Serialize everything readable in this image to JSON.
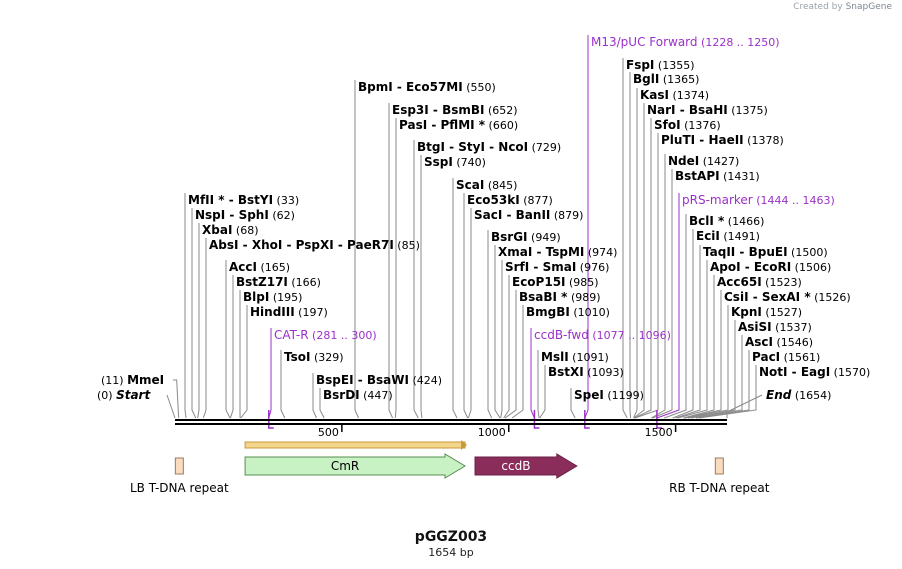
{
  "watermark": {
    "prefix": "Created by",
    "brand": "SnapGene"
  },
  "sequence": {
    "name": "pGGZ003",
    "length_label": "1654 bp",
    "length": 1654
  },
  "axis": {
    "ticks": [
      {
        "label": "500",
        "pos": 500
      },
      {
        "label": "1000",
        "pos": 1000
      },
      {
        "label": "1500",
        "pos": 1500
      }
    ]
  },
  "labels": [
    {
      "name": "FspI",
      "pos": "(1355)",
      "site": 1355,
      "kind": "enzyme"
    },
    {
      "name": "BglI",
      "pos": "(1365)",
      "site": 1365,
      "kind": "enzyme"
    },
    {
      "name": "KasI",
      "pos": "(1374)",
      "site": 1374,
      "kind": "enzyme"
    },
    {
      "name": "NarI  - BsaHI",
      "pos": "(1375)",
      "site": 1375,
      "kind": "enzyme"
    },
    {
      "name": "SfoI",
      "pos": "(1376)",
      "site": 1376,
      "kind": "enzyme"
    },
    {
      "name": "PluTI  - HaeII",
      "pos": "(1378)",
      "site": 1378,
      "kind": "enzyme"
    },
    {
      "name": "NdeI",
      "pos": "(1427)",
      "site": 1427,
      "kind": "enzyme"
    },
    {
      "name": "BstAPI",
      "pos": "(1431)",
      "site": 1431,
      "kind": "enzyme"
    },
    {
      "name": "pRS-marker",
      "pos": "(1444 .. 1463)",
      "site": 1444,
      "kind": "primer"
    },
    {
      "name": "BclI *",
      "pos": "(1466)",
      "site": 1466,
      "kind": "enzyme"
    },
    {
      "name": "EciI",
      "pos": "(1491)",
      "site": 1491,
      "kind": "enzyme"
    },
    {
      "name": "TaqII  - BpuEI",
      "pos": "(1500)",
      "site": 1500,
      "kind": "enzyme"
    },
    {
      "name": "ApoI  - EcoRI",
      "pos": "(1506)",
      "site": 1506,
      "kind": "enzyme"
    },
    {
      "name": "Acc65I",
      "pos": "(1523)",
      "site": 1523,
      "kind": "enzyme"
    },
    {
      "name": "CsiI  - SexAI *",
      "pos": "(1526)",
      "site": 1526,
      "kind": "enzyme"
    },
    {
      "name": "KpnI",
      "pos": "(1527)",
      "site": 1527,
      "kind": "enzyme"
    },
    {
      "name": "AsiSI",
      "pos": "(1537)",
      "site": 1537,
      "kind": "enzyme"
    },
    {
      "name": "AscI",
      "pos": "(1546)",
      "site": 1546,
      "kind": "enzyme"
    },
    {
      "name": "PacI",
      "pos": "(1561)",
      "site": 1561,
      "kind": "enzyme"
    },
    {
      "name": "NotI  - EagI",
      "pos": "(1570)",
      "site": 1570,
      "kind": "enzyme"
    },
    {
      "name": "End",
      "pos": "(1654)",
      "site": 1654,
      "kind": "end"
    },
    {
      "name": "M13/pUC Forward",
      "pos": "(1228 .. 1250)",
      "site": 1228,
      "kind": "primer"
    },
    {
      "name": "BpmI  - Eco57MI",
      "pos": "(550)",
      "site": 550,
      "kind": "enzyme"
    },
    {
      "name": "Esp3I  - BsmBI",
      "pos": "(652)",
      "site": 652,
      "kind": "enzyme"
    },
    {
      "name": "PasI  - PflMI *",
      "pos": "(660)",
      "site": 660,
      "kind": "enzyme"
    },
    {
      "name": "BtgI  - StyI  - NcoI",
      "pos": "(729)",
      "site": 729,
      "kind": "enzyme"
    },
    {
      "name": "SspI",
      "pos": "(740)",
      "site": 740,
      "kind": "enzyme"
    },
    {
      "name": "ScaI",
      "pos": "(845)",
      "site": 845,
      "kind": "enzyme"
    },
    {
      "name": "Eco53kI",
      "pos": "(877)",
      "site": 877,
      "kind": "enzyme"
    },
    {
      "name": "SacI  - BanII",
      "pos": "(879)",
      "site": 879,
      "kind": "enzyme"
    },
    {
      "name": "BsrGI",
      "pos": "(949)",
      "site": 949,
      "kind": "enzyme"
    },
    {
      "name": "XmaI  - TspMI",
      "pos": "(974)",
      "site": 974,
      "kind": "enzyme"
    },
    {
      "name": "SrfI  - SmaI",
      "pos": "(976)",
      "site": 976,
      "kind": "enzyme"
    },
    {
      "name": "EcoP15I",
      "pos": "(985)",
      "site": 985,
      "kind": "enzyme"
    },
    {
      "name": "BsaBI *",
      "pos": "(989)",
      "site": 989,
      "kind": "enzyme"
    },
    {
      "name": "BmgBI",
      "pos": "(1010)",
      "site": 1010,
      "kind": "enzyme"
    },
    {
      "name": "ccdB-fwd",
      "pos": "(1077 .. 1096)",
      "site": 1077,
      "kind": "primer"
    },
    {
      "name": "MslI",
      "pos": "(1091)",
      "site": 1091,
      "kind": "enzyme"
    },
    {
      "name": "BstXI",
      "pos": "(1093)",
      "site": 1093,
      "kind": "enzyme"
    },
    {
      "name": "SpeI",
      "pos": "(1199)",
      "site": 1199,
      "kind": "enzyme"
    },
    {
      "name": "MfII *  - BstYI",
      "pos": "(33)",
      "site": 33,
      "kind": "enzyme"
    },
    {
      "name": "NspI  - SphI",
      "pos": "(62)",
      "site": 62,
      "kind": "enzyme"
    },
    {
      "name": "XbaI",
      "pos": "(68)",
      "site": 68,
      "kind": "enzyme"
    },
    {
      "name": "AbsI  - XhoI  - PspXI  - PaeR7I",
      "pos": "(85)",
      "site": 85,
      "kind": "enzyme"
    },
    {
      "name": "AccI",
      "pos": "(165)",
      "site": 165,
      "kind": "enzyme"
    },
    {
      "name": "BstZ17I",
      "pos": "(166)",
      "site": 166,
      "kind": "enzyme"
    },
    {
      "name": "BlpI",
      "pos": "(195)",
      "site": 195,
      "kind": "enzyme"
    },
    {
      "name": "HindIII",
      "pos": "(197)",
      "site": 197,
      "kind": "enzyme"
    },
    {
      "name": "CAT-R",
      "pos": "(281 .. 300)",
      "site": 281,
      "kind": "primer"
    },
    {
      "name": "TsoI",
      "pos": "(329)",
      "site": 329,
      "kind": "enzyme"
    },
    {
      "name": "BspEI  - BsaWI",
      "pos": "(424)",
      "site": 424,
      "kind": "enzyme"
    },
    {
      "name": "BsrDI",
      "pos": "(447)",
      "site": 447,
      "kind": "enzyme"
    },
    {
      "name": "MmeI",
      "pos": "(11)",
      "site": 11,
      "kind": "enzyme"
    },
    {
      "name": "Start",
      "pos": "(0)",
      "site": 0,
      "kind": "start"
    }
  ],
  "features": [
    {
      "name": "LB T-DNA repeat",
      "start": 1,
      "end": 25,
      "type": "repeat",
      "color": "#f9dcc0"
    },
    {
      "name": "CmR",
      "start": 210,
      "end": 869,
      "type": "gene",
      "color": "#c8f2c4"
    },
    {
      "name": "ccdB",
      "start": 899,
      "end": 1204,
      "type": "gene",
      "color": "#8b2d5b"
    },
    {
      "name": "RB T-DNA repeat",
      "start": 1619,
      "end": 1643,
      "type": "repeat",
      "color": "#f9dcc0"
    }
  ],
  "orf": {
    "start": 210,
    "end": 869,
    "color": "#c8993b"
  },
  "colors": {
    "enzyme": "#000000",
    "primer": "#9b30c8",
    "line": "#333333"
  }
}
